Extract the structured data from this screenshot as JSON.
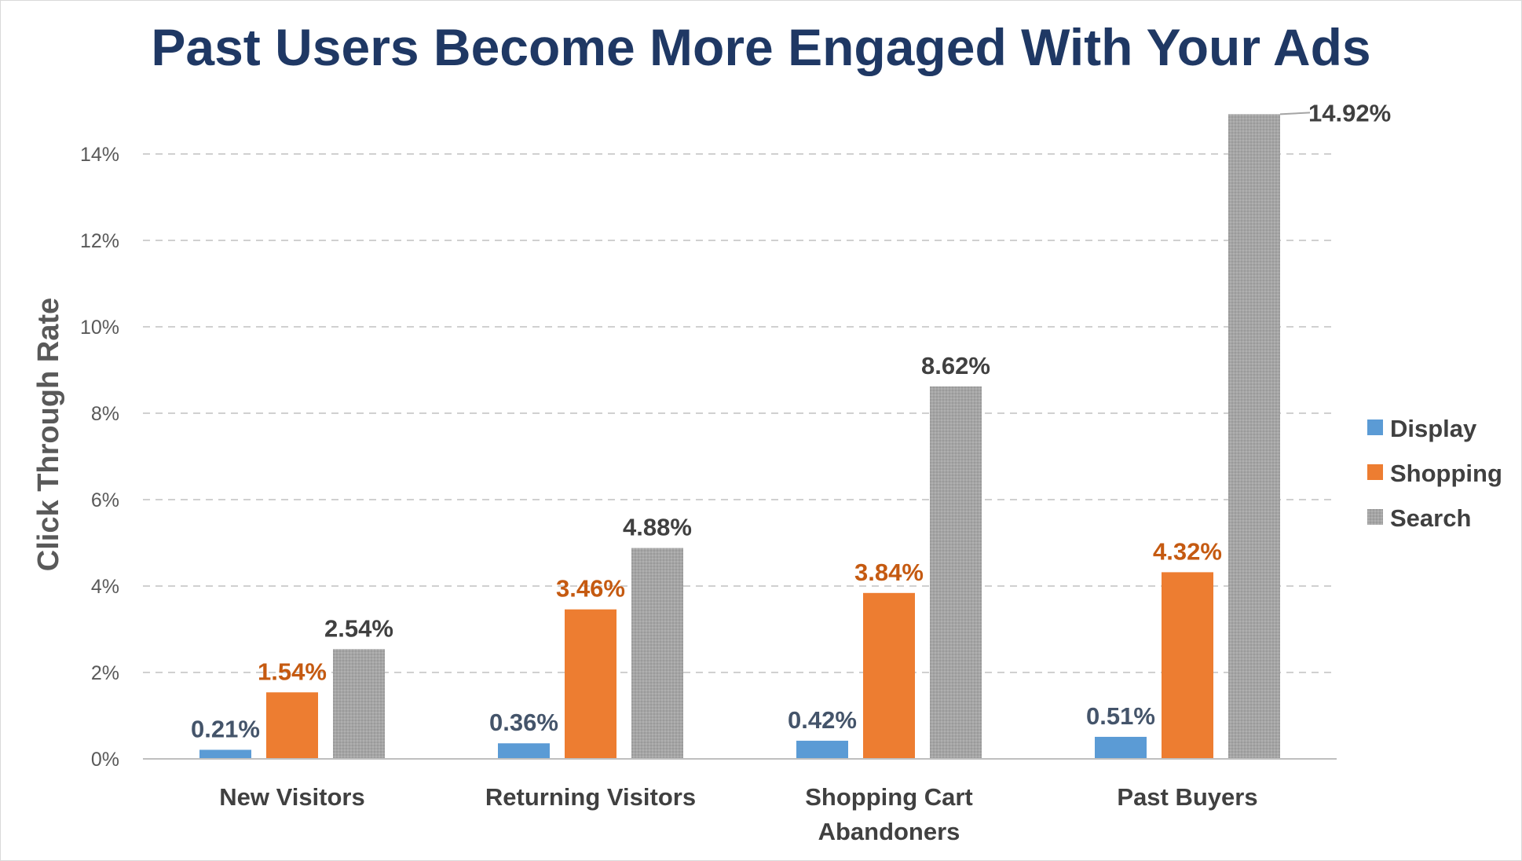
{
  "chart_data": {
    "type": "bar",
    "title": "Past Users Become More Engaged With Your Ads",
    "xlabel": "",
    "ylabel": "Click Through Rate",
    "ylim": [
      0,
      15
    ],
    "yticks": [
      "0%",
      "2%",
      "4%",
      "6%",
      "8%",
      "10%",
      "12%",
      "14%"
    ],
    "ytick_values": [
      0,
      2,
      4,
      6,
      8,
      10,
      12,
      14
    ],
    "categories": [
      [
        "New Visitors"
      ],
      [
        "Returning Visitors"
      ],
      [
        "Shopping Cart",
        "Abandoners"
      ],
      [
        "Past Buyers"
      ]
    ],
    "series": [
      {
        "name": "Display",
        "color": "#5b9bd5",
        "label_color": "#44546a",
        "values": [
          0.21,
          0.36,
          0.42,
          0.51
        ],
        "labels": [
          "0.21%",
          "0.36%",
          "0.42%",
          "0.51%"
        ]
      },
      {
        "name": "Shopping",
        "color": "#ed7d31",
        "label_color": "#c55a11",
        "values": [
          1.54,
          3.46,
          3.84,
          4.32
        ],
        "labels": [
          "1.54%",
          "3.46%",
          "3.84%",
          "4.32%"
        ]
      },
      {
        "name": "Search",
        "color": "#a5a5a5",
        "label_color": "#404040",
        "values": [
          2.54,
          4.88,
          8.62,
          14.92
        ],
        "labels": [
          "2.54%",
          "4.88%",
          "8.62%",
          "14.92%"
        ]
      }
    ],
    "grid": true,
    "legend": "right"
  }
}
